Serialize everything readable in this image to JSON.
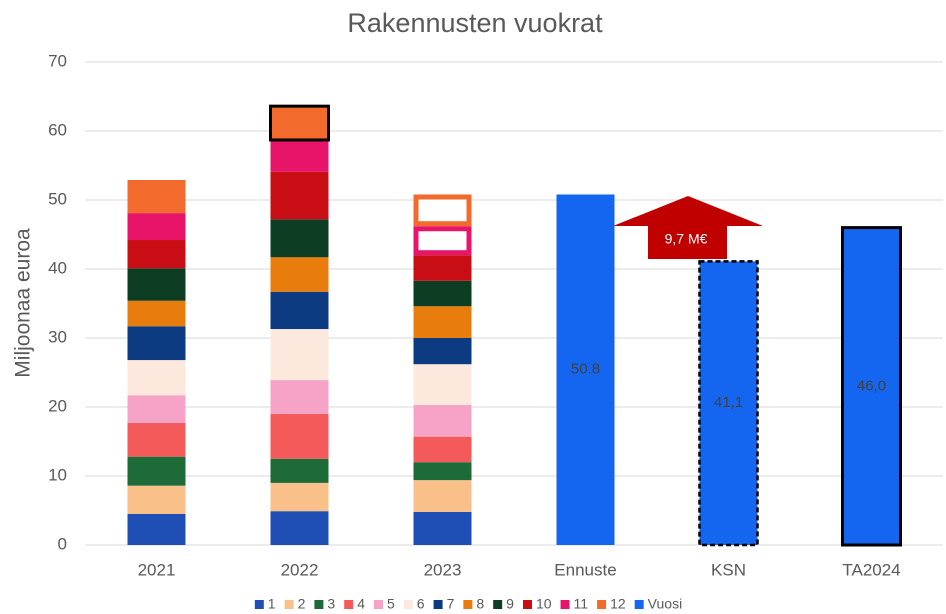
{
  "chart_data": {
    "type": "bar",
    "stacked": true,
    "title": "Rakennusten vuokrat",
    "y_label": "Miljoonaa euroa",
    "categories": [
      "2021",
      "2022",
      "2023",
      "Ennuste",
      "KSN",
      "TA2024"
    ],
    "series": [
      {
        "name": "1",
        "color": "#1f4eb4",
        "values": [
          4.5,
          4.9,
          4.8,
          null,
          null,
          null
        ]
      },
      {
        "name": "2",
        "color": "#f9c08a",
        "values": [
          4.1,
          4.1,
          4.6,
          null,
          null,
          null
        ]
      },
      {
        "name": "3",
        "color": "#1e6b3a",
        "values": [
          4.2,
          3.5,
          2.6,
          null,
          null,
          null
        ]
      },
      {
        "name": "4",
        "color": "#f45a5a",
        "values": [
          4.9,
          6.5,
          3.7,
          null,
          null,
          null
        ]
      },
      {
        "name": "5",
        "color": "#f7a3c8",
        "values": [
          4.0,
          4.9,
          4.6,
          null,
          null,
          null
        ]
      },
      {
        "name": "6",
        "color": "#fce8dc",
        "values": [
          5.1,
          7.4,
          5.9,
          null,
          null,
          null
        ]
      },
      {
        "name": "7",
        "color": "#0c3b82",
        "values": [
          4.9,
          5.4,
          3.8,
          null,
          null,
          null
        ]
      },
      {
        "name": "8",
        "color": "#e87c0c",
        "values": [
          3.7,
          5.0,
          4.6,
          null,
          null,
          null
        ]
      },
      {
        "name": "9",
        "color": "#0d3d22",
        "values": [
          4.7,
          5.5,
          3.7,
          null,
          null,
          null
        ]
      },
      {
        "name": "10",
        "color": "#c80e14",
        "values": [
          4.1,
          6.9,
          3.7,
          null,
          null,
          null
        ]
      },
      {
        "name": "11",
        "color": "#e8146a",
        "values": [
          3.9,
          4.6,
          4.2,
          null,
          null,
          null
        ]
      },
      {
        "name": "12",
        "color": "#f26a2c",
        "values": [
          4.8,
          4.9,
          4.6,
          null,
          null,
          null
        ]
      },
      {
        "name": "Vuosi",
        "color": "#1466f0",
        "values": [
          null,
          null,
          null,
          50.8,
          41.1,
          46.0
        ],
        "value_labels": [
          null,
          null,
          null,
          "50.8",
          "41,1",
          "46,0"
        ]
      }
    ],
    "annotation": "9,7 M€",
    "ylim": [
      0,
      70
    ],
    "yticks": [
      0,
      10,
      20,
      30,
      40,
      50,
      60,
      70
    ],
    "grid": true,
    "legend": "bottom"
  }
}
